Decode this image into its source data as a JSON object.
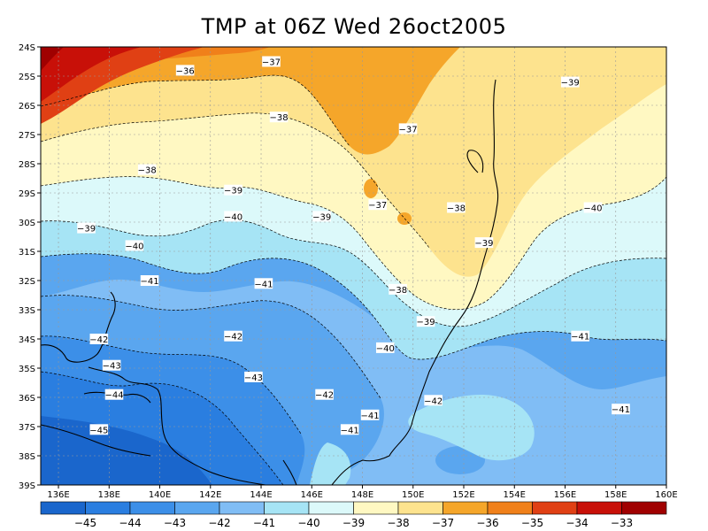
{
  "title": "TMP at 06Z Wed 26oct2005",
  "map": {
    "lat_ticks": [
      "24S",
      "25S",
      "26S",
      "27S",
      "28S",
      "29S",
      "30S",
      "31S",
      "32S",
      "33S",
      "34S",
      "35S",
      "36S",
      "37S",
      "38S",
      "39S"
    ],
    "lon_ticks": [
      "136E",
      "138E",
      "140E",
      "142E",
      "144E",
      "146E",
      "148E",
      "150E",
      "152E",
      "154E",
      "156E",
      "158E",
      "160E"
    ],
    "lat_range": [
      -39,
      -24
    ],
    "lon_range": [
      135.3,
      160
    ],
    "contour_labels": [
      {
        "text": "-36",
        "lon": 141.0,
        "lat": -24.8
      },
      {
        "text": "-37",
        "lon": 144.4,
        "lat": -24.5
      },
      {
        "text": "-38",
        "lon": 144.7,
        "lat": -26.4
      },
      {
        "text": "-37",
        "lon": 149.8,
        "lat": -26.8
      },
      {
        "text": "-39",
        "lon": 156.2,
        "lat": -25.2
      },
      {
        "text": "-38",
        "lon": 139.5,
        "lat": -28.2
      },
      {
        "text": "-39",
        "lon": 142.9,
        "lat": -28.9
      },
      {
        "text": "-37",
        "lon": 148.6,
        "lat": -29.4
      },
      {
        "text": "-38",
        "lon": 151.7,
        "lat": -29.5
      },
      {
        "text": "-39",
        "lon": 137.1,
        "lat": -30.2
      },
      {
        "text": "-40",
        "lon": 142.9,
        "lat": -29.8
      },
      {
        "text": "-39",
        "lon": 146.4,
        "lat": -29.8
      },
      {
        "text": "-40",
        "lon": 157.1,
        "lat": -29.5
      },
      {
        "text": "-39",
        "lon": 152.8,
        "lat": -30.7
      },
      {
        "text": "-40",
        "lon": 139.0,
        "lat": -30.8
      },
      {
        "text": "-41",
        "lon": 139.6,
        "lat": -32.0
      },
      {
        "text": "-41",
        "lon": 144.1,
        "lat": -32.1
      },
      {
        "text": "-38",
        "lon": 149.4,
        "lat": -32.3
      },
      {
        "text": "-39",
        "lon": 150.5,
        "lat": -33.4
      },
      {
        "text": "-42",
        "lon": 137.6,
        "lat": -34.0
      },
      {
        "text": "-42",
        "lon": 142.9,
        "lat": -33.9
      },
      {
        "text": "-40",
        "lon": 148.9,
        "lat": -34.3
      },
      {
        "text": "-41",
        "lon": 156.6,
        "lat": -33.9
      },
      {
        "text": "-43",
        "lon": 138.1,
        "lat": -34.9
      },
      {
        "text": "-43",
        "lon": 143.7,
        "lat": -35.3
      },
      {
        "text": "-42",
        "lon": 146.5,
        "lat": -35.9
      },
      {
        "text": "-42",
        "lon": 150.8,
        "lat": -36.1
      },
      {
        "text": "-44",
        "lon": 138.2,
        "lat": -35.9
      },
      {
        "text": "-41",
        "lon": 158.2,
        "lat": -36.4
      },
      {
        "text": "-41",
        "lon": 148.3,
        "lat": -36.6
      },
      {
        "text": "-45",
        "lon": 137.6,
        "lat": -37.1
      },
      {
        "text": "-41",
        "lon": 147.5,
        "lat": -37.1
      }
    ]
  },
  "colorbar": {
    "labels": [
      "-45",
      "-44",
      "-43",
      "-42",
      "-41",
      "-40",
      "-39",
      "-38",
      "-37",
      "-36",
      "-35",
      "-34",
      "-33"
    ],
    "colors": [
      "#1a66cc",
      "#2a7ee0",
      "#3c8fe8",
      "#5aa6ef",
      "#80bdf5",
      "#a6e4f5",
      "#dcf9fa",
      "#fff8c2",
      "#fde38e",
      "#f5a62a",
      "#f0801a",
      "#e04014",
      "#c81008",
      "#a00000"
    ]
  }
}
